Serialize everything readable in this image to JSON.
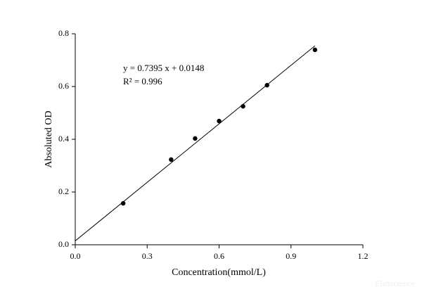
{
  "chart_data": {
    "type": "scatter",
    "x_label": "Concentration(mmol/L)",
    "y_label": "Absoluted OD",
    "annotations": [
      "y = 0.7395 x + 0.0148",
      "R² = 0.996"
    ],
    "watermark": "Elabscience",
    "x": [
      0.2,
      0.4,
      0.5,
      0.6,
      0.7,
      0.8,
      1.0
    ],
    "values": [
      0.157,
      0.323,
      0.403,
      0.469,
      0.525,
      0.605,
      0.739
    ],
    "color": "#000000",
    "fit_line": {
      "x": [
        0,
        1.0
      ],
      "values": [
        0.0148,
        0.7543
      ]
    },
    "xlim": [
      0,
      1.2
    ],
    "xticks": [
      {
        "value": 0,
        "label": "0.0"
      },
      0.3,
      0.6,
      0.9,
      1.2
    ],
    "ylim": [
      0,
      0.8
    ],
    "yticks": [
      {
        "value": 0,
        "label": "0.0"
      },
      0.2,
      0.4,
      0.6,
      0.8
    ],
    "grid": false
  }
}
